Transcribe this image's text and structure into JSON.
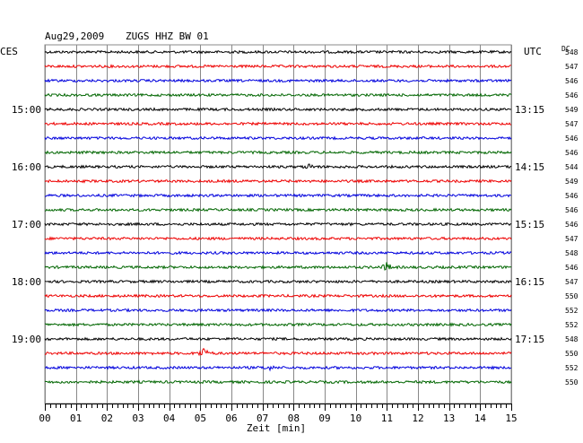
{
  "header": {
    "date": "Aug29,2009",
    "station": "ZUGS HHZ BW 01",
    "left_timezone": "CES",
    "right_timezone": "UTC",
    "dc_label": "DC"
  },
  "chart_data": {
    "type": "line",
    "title": "Aug29,2009 ZUGS HHZ BW 01",
    "xlabel": "Zeit [min]",
    "xlim": [
      0,
      15
    ],
    "x_ticks": [
      "00",
      "01",
      "02",
      "03",
      "04",
      "05",
      "06",
      "07",
      "08",
      "09",
      "10",
      "11",
      "12",
      "13",
      "14",
      "15"
    ],
    "trace_colors": [
      "#000000",
      "#ee0000",
      "#0000dd",
      "#006600"
    ],
    "left_hour_labels": [
      {
        "row": 4,
        "label": "15:00"
      },
      {
        "row": 8,
        "label": "16:00"
      },
      {
        "row": 12,
        "label": "17:00"
      },
      {
        "row": 16,
        "label": "18:00"
      },
      {
        "row": 20,
        "label": "19:00"
      }
    ],
    "right_hour_labels": [
      {
        "row": 4,
        "label": "13:15"
      },
      {
        "row": 8,
        "label": "14:15"
      },
      {
        "row": 12,
        "label": "15:15"
      },
      {
        "row": 16,
        "label": "16:15"
      },
      {
        "row": 20,
        "label": "17:15"
      }
    ],
    "dc_values": [
      "548",
      "547",
      "546",
      "546",
      "549",
      "547",
      "546",
      "546",
      "544",
      "549",
      "546",
      "546",
      "546",
      "547",
      "548",
      "546",
      "547",
      "550",
      "552",
      "552",
      "548",
      "550",
      "552",
      "550"
    ],
    "events": [
      {
        "row": 8,
        "minute": 8.5,
        "amplitude": 2.5
      },
      {
        "row": 15,
        "minute": 11.0,
        "amplitude": 5
      },
      {
        "row": 21,
        "minute": 5.1,
        "amplitude": 6
      },
      {
        "row": 22,
        "minute": 7.2,
        "amplitude": 2.5
      }
    ]
  }
}
